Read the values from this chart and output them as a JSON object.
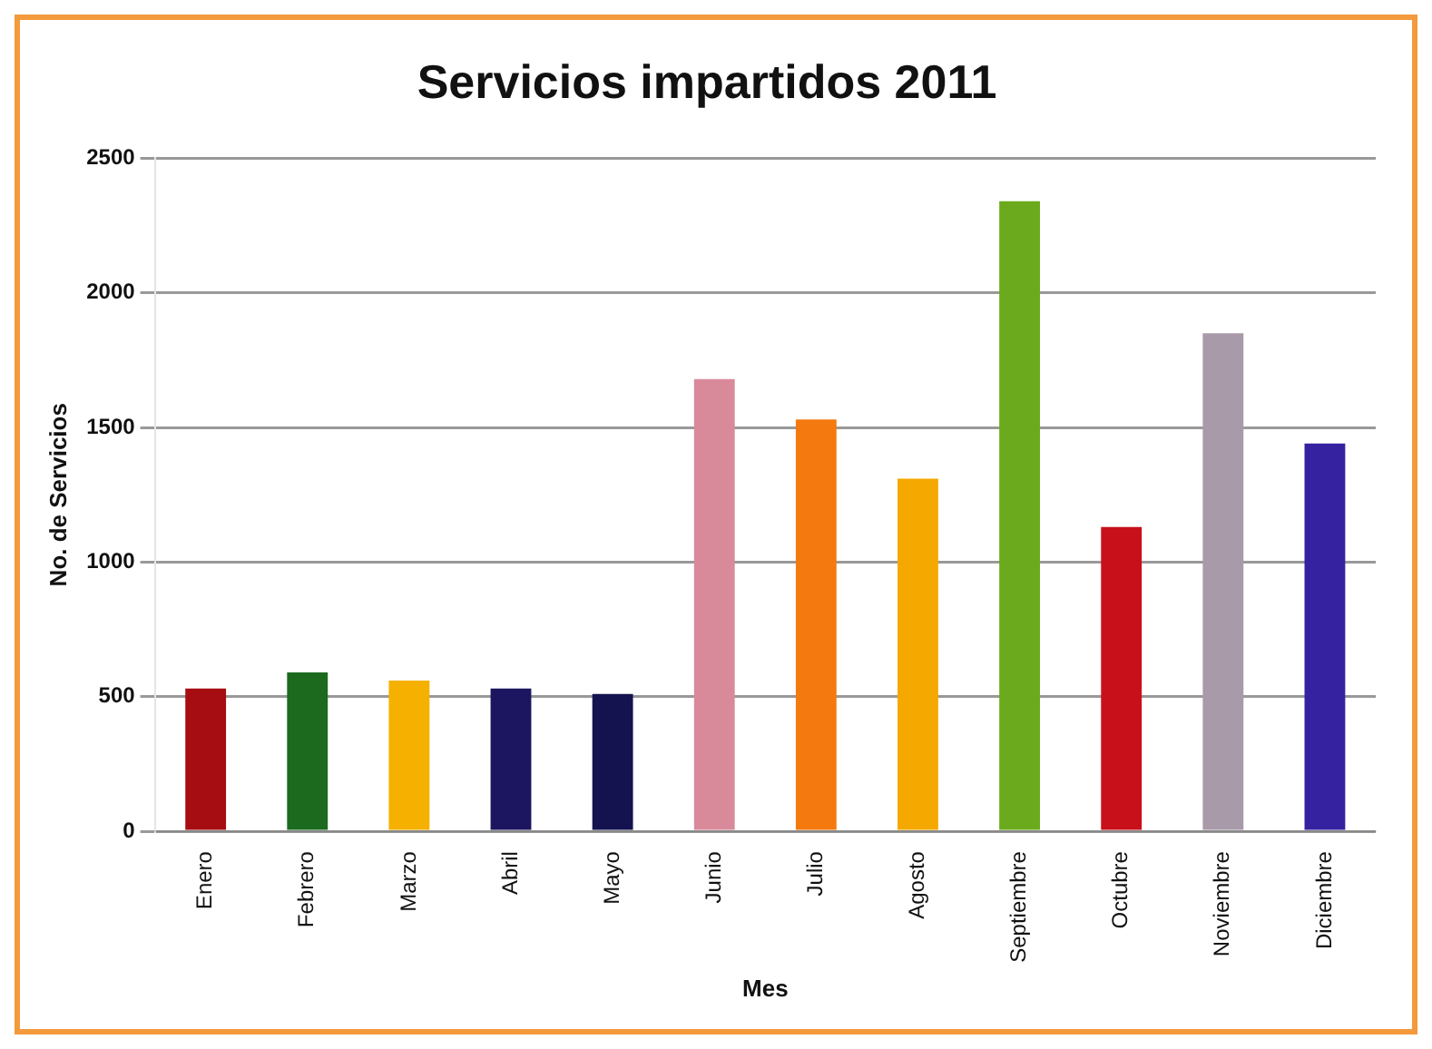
{
  "chart_data": {
    "type": "bar",
    "title": "Servicios impartidos 2011",
    "xlabel": "Mes",
    "ylabel": "No. de Servicios",
    "categories": [
      "Enero",
      "Febrero",
      "Marzo",
      "Abril",
      "Mayo",
      "Junio",
      "Julio",
      "Agosto",
      "Septiembre",
      "Octubre",
      "Noviembre",
      "Diciembre"
    ],
    "values": [
      530,
      590,
      560,
      530,
      510,
      1680,
      1530,
      1310,
      2340,
      1130,
      1850,
      1440
    ],
    "colors": [
      "#a50d12",
      "#1b6a1e",
      "#f5b000",
      "#1c1660",
      "#14134f",
      "#d88a9a",
      "#f47a10",
      "#f5a800",
      "#6aaa1c",
      "#c8101a",
      "#a89aa8",
      "#3522a0"
    ],
    "ylim": [
      0,
      2500
    ],
    "yticks": [
      0,
      500,
      1000,
      1500,
      2000,
      2500
    ],
    "grid": "y"
  }
}
